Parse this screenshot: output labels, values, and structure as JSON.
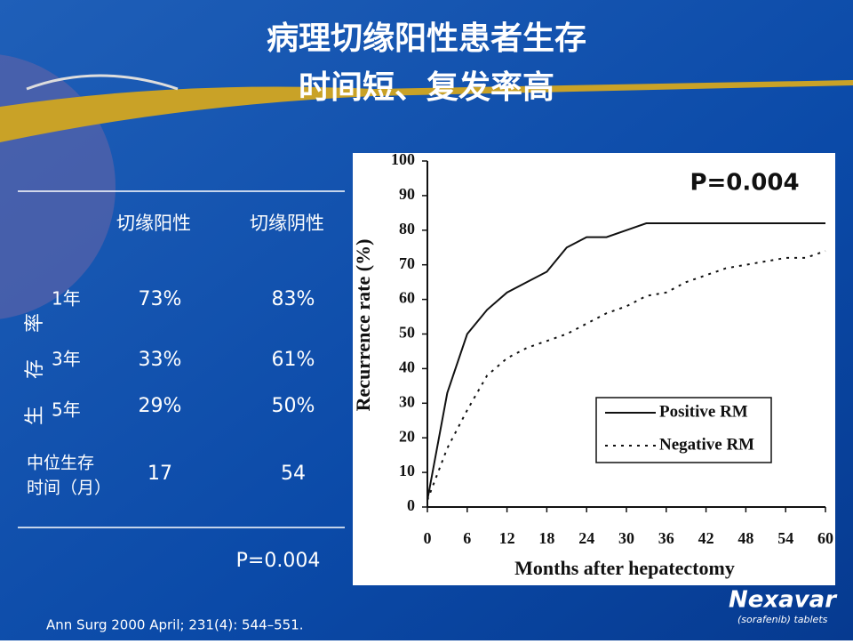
{
  "title": [
    "病理切缘阳性患者生存",
    "时间短、复发率高"
  ],
  "table": {
    "header": [
      "切缘阳性",
      "切缘阴性"
    ],
    "side_label": "生存率",
    "rows": [
      [
        "1年",
        "73%",
        "83%"
      ],
      [
        "3年",
        "33%",
        "61%"
      ],
      [
        "5年",
        "29%",
        "50%"
      ]
    ],
    "median_label": [
      "中位生存",
      "时间（月）"
    ],
    "median": [
      "17",
      "54"
    ],
    "p_value": "P=0.004"
  },
  "chart_data": {
    "type": "line",
    "annotation": "P=0.004",
    "x_label": "Months after hepatectomy",
    "y_label": "Recurrence rate (%)",
    "x": [
      0,
      3,
      6,
      9,
      12,
      15,
      18,
      21,
      24,
      27,
      30,
      33,
      36,
      39,
      42,
      45,
      48,
      51,
      54,
      57,
      60
    ],
    "series": [
      {
        "name": "Positive RM",
        "color": "#111111",
        "dash": "solid",
        "values": [
          2,
          33,
          50,
          57,
          62,
          65,
          68,
          75,
          78,
          78,
          80,
          82,
          82,
          82,
          82,
          82,
          82,
          82,
          82,
          82,
          82
        ]
      },
      {
        "name": "Negative RM",
        "color": "#111111",
        "dash": "dotted",
        "values": [
          2,
          17,
          28,
          38,
          43,
          46,
          48,
          50,
          53,
          56,
          58,
          61,
          62,
          65,
          67,
          69,
          70,
          71,
          72,
          72,
          74
        ]
      }
    ],
    "xlim": [
      0,
      60
    ],
    "xticks": [
      0,
      6,
      12,
      18,
      24,
      30,
      36,
      42,
      48,
      54,
      60
    ],
    "ylim": [
      0,
      100
    ],
    "yticks": [
      0,
      10,
      20,
      30,
      40,
      50,
      60,
      70,
      80,
      90,
      100
    ],
    "legend": "lower right"
  },
  "citation": "Ann Surg  2000 April; 231(4): 544–551.",
  "logo": {
    "name": "Nexavar",
    "subtitle": "(sorafenib) tablets"
  }
}
